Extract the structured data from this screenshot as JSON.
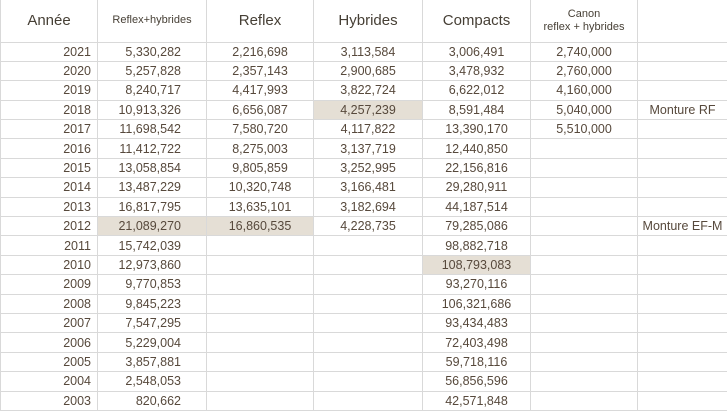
{
  "colors": {
    "highlight": "#e5dfd5",
    "gridline": "#d9d9d9",
    "text": "#57493c",
    "header_text": "#463f35"
  },
  "table": {
    "column_keys": [
      "annee",
      "reflex_hybrides",
      "reflex",
      "hybrides",
      "compacts",
      "canon",
      "note"
    ],
    "header": {
      "annee": "Année",
      "reflex_hybrides": "Reflex+hybrides",
      "reflex": "Reflex",
      "hybrides": "Hybrides",
      "compacts": "Compacts",
      "canon_line1": "Canon",
      "canon_line2": "reflex + hybrides",
      "note": ""
    },
    "rows": [
      {
        "annee": "2021",
        "reflex_hybrides": "5,330,282",
        "reflex": "2,216,698",
        "hybrides": "3,113,584",
        "compacts": "3,006,491",
        "canon": "2,740,000",
        "note": ""
      },
      {
        "annee": "2020",
        "reflex_hybrides": "5,257,828",
        "reflex": "2,357,143",
        "hybrides": "2,900,685",
        "compacts": "3,478,932",
        "canon": "2,760,000",
        "note": ""
      },
      {
        "annee": "2019",
        "reflex_hybrides": "8,240,717",
        "reflex": "4,417,993",
        "hybrides": "3,822,724",
        "compacts": "6,622,012",
        "canon": "4,160,000",
        "note": ""
      },
      {
        "annee": "2018",
        "reflex_hybrides": "10,913,326",
        "reflex": "6,656,087",
        "hybrides": "4,257,239",
        "compacts": "8,591,484",
        "canon": "5,040,000",
        "note": "Monture RF"
      },
      {
        "annee": "2017",
        "reflex_hybrides": "11,698,542",
        "reflex": "7,580,720",
        "hybrides": "4,117,822",
        "compacts": "13,390,170",
        "canon": "5,510,000",
        "note": ""
      },
      {
        "annee": "2016",
        "reflex_hybrides": "11,412,722",
        "reflex": "8,275,003",
        "hybrides": "3,137,719",
        "compacts": "12,440,850",
        "canon": "",
        "note": ""
      },
      {
        "annee": "2015",
        "reflex_hybrides": "13,058,854",
        "reflex": "9,805,859",
        "hybrides": "3,252,995",
        "compacts": "22,156,816",
        "canon": "",
        "note": ""
      },
      {
        "annee": "2014",
        "reflex_hybrides": "13,487,229",
        "reflex": "10,320,748",
        "hybrides": "3,166,481",
        "compacts": "29,280,911",
        "canon": "",
        "note": ""
      },
      {
        "annee": "2013",
        "reflex_hybrides": "16,817,795",
        "reflex": "13,635,101",
        "hybrides": "3,182,694",
        "compacts": "44,187,514",
        "canon": "",
        "note": ""
      },
      {
        "annee": "2012",
        "reflex_hybrides": "21,089,270",
        "reflex": "16,860,535",
        "hybrides": "4,228,735",
        "compacts": "79,285,086",
        "canon": "",
        "note": "Monture EF-M"
      },
      {
        "annee": "2011",
        "reflex_hybrides": "15,742,039",
        "reflex": "",
        "hybrides": "",
        "compacts": "98,882,718",
        "canon": "",
        "note": ""
      },
      {
        "annee": "2010",
        "reflex_hybrides": "12,973,860",
        "reflex": "",
        "hybrides": "",
        "compacts": "108,793,083",
        "canon": "",
        "note": ""
      },
      {
        "annee": "2009",
        "reflex_hybrides": "9,770,853",
        "reflex": "",
        "hybrides": "",
        "compacts": "93,270,116",
        "canon": "",
        "note": ""
      },
      {
        "annee": "2008",
        "reflex_hybrides": "9,845,223",
        "reflex": "",
        "hybrides": "",
        "compacts": "106,321,686",
        "canon": "",
        "note": ""
      },
      {
        "annee": "2007",
        "reflex_hybrides": "7,547,295",
        "reflex": "",
        "hybrides": "",
        "compacts": "93,434,483",
        "canon": "",
        "note": ""
      },
      {
        "annee": "2006",
        "reflex_hybrides": "5,229,004",
        "reflex": "",
        "hybrides": "",
        "compacts": "72,403,498",
        "canon": "",
        "note": ""
      },
      {
        "annee": "2005",
        "reflex_hybrides": "3,857,881",
        "reflex": "",
        "hybrides": "",
        "compacts": "59,718,116",
        "canon": "",
        "note": ""
      },
      {
        "annee": "2004",
        "reflex_hybrides": "2,548,053",
        "reflex": "",
        "hybrides": "",
        "compacts": "56,856,596",
        "canon": "",
        "note": ""
      },
      {
        "annee": "2003",
        "reflex_hybrides": "820,662",
        "reflex": "",
        "hybrides": "",
        "compacts": "42,571,848",
        "canon": "",
        "note": ""
      }
    ],
    "highlights": [
      {
        "annee": "2018",
        "column": "hybrides"
      },
      {
        "annee": "2012",
        "column": "reflex_hybrides"
      },
      {
        "annee": "2012",
        "column": "reflex"
      },
      {
        "annee": "2010",
        "column": "compacts"
      }
    ]
  }
}
